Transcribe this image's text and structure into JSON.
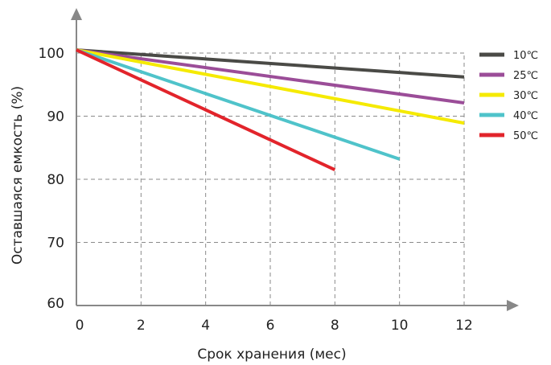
{
  "chart_data": {
    "type": "line",
    "xlabel": "Срок хранения (мес)",
    "ylabel": "Оставшаяся емкость (%)",
    "xlim": [
      0,
      12
    ],
    "ylim": [
      60,
      100
    ],
    "x_ticks": [
      "0",
      "2",
      "4",
      "6",
      "8",
      "10",
      "12"
    ],
    "y_ticks": [
      "60",
      "70",
      "80",
      "90",
      "100"
    ],
    "grid": true,
    "legend_position": "top-right",
    "series": [
      {
        "name": "10℃",
        "color": "#4a4a46",
        "x": [
          0,
          12
        ],
        "y": [
          100.5,
          96.2
        ]
      },
      {
        "name": "25℃",
        "color": "#9b4d98",
        "x": [
          0,
          12
        ],
        "y": [
          100.5,
          92.1
        ]
      },
      {
        "name": "30℃",
        "color": "#f5ea00",
        "x": [
          0,
          12
        ],
        "y": [
          100.5,
          88.9
        ]
      },
      {
        "name": "40℃",
        "color": "#4fc3ca",
        "x": [
          0,
          10
        ],
        "y": [
          100.5,
          83.2
        ]
      },
      {
        "name": "50℃",
        "color": "#e2242b",
        "x": [
          0,
          8
        ],
        "y": [
          100.5,
          81.5
        ]
      }
    ]
  }
}
